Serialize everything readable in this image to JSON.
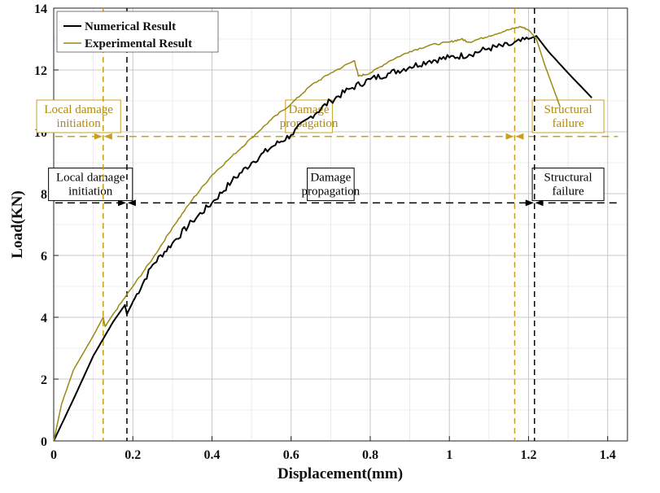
{
  "chart_data": {
    "type": "line",
    "xlabel": "Displacement(mm)",
    "ylabel": "Load(KN)",
    "xlim": [
      0,
      1.45
    ],
    "ylim": [
      0,
      14
    ],
    "xticks": [
      0,
      0.2,
      0.4,
      0.6,
      0.8,
      1,
      1.2,
      1.4
    ],
    "xtick_labels": [
      "0",
      "0.2",
      "0.4",
      "0.6",
      "0.8",
      "1",
      "1.2",
      "1.4"
    ],
    "yticks": [
      0,
      2,
      4,
      6,
      8,
      10,
      12,
      14
    ],
    "ytick_labels": [
      "0",
      "2",
      "4",
      "6",
      "8",
      "10",
      "12",
      "14"
    ],
    "grid": true,
    "legend_position": "top-left",
    "colors": {
      "numerical": "#000000",
      "experimental": "#9a8a12",
      "phase_experimental": "#c8a020"
    },
    "series": [
      {
        "name": "Numerical Result",
        "color": "#000000",
        "x": [
          0,
          0.05,
          0.1,
          0.15,
          0.18,
          0.185,
          0.2,
          0.25,
          0.3,
          0.35,
          0.4,
          0.45,
          0.5,
          0.55,
          0.6,
          0.65,
          0.7,
          0.75,
          0.8,
          0.85,
          0.9,
          0.95,
          1.0,
          1.05,
          1.1,
          1.15,
          1.2,
          1.22,
          1.25,
          1.3,
          1.36
        ],
        "y": [
          0,
          1.35,
          2.75,
          3.85,
          4.4,
          4.1,
          4.5,
          5.7,
          6.4,
          7.1,
          7.7,
          8.4,
          9.0,
          9.5,
          9.9,
          10.5,
          11.0,
          11.4,
          11.7,
          11.9,
          12.1,
          12.3,
          12.4,
          12.5,
          12.7,
          12.8,
          13.0,
          13.1,
          12.6,
          11.9,
          11.1
        ]
      },
      {
        "name": "Experimental Result",
        "color": "#9a8a12",
        "x": [
          0,
          0.02,
          0.05,
          0.1,
          0.125,
          0.13,
          0.15,
          0.2,
          0.25,
          0.3,
          0.35,
          0.4,
          0.45,
          0.5,
          0.55,
          0.6,
          0.65,
          0.7,
          0.76,
          0.77,
          0.8,
          0.85,
          0.9,
          0.95,
          1.0,
          1.03,
          1.05,
          1.1,
          1.15,
          1.18,
          1.2,
          1.22,
          1.24,
          1.26,
          1.28
        ],
        "y": [
          0,
          1.2,
          2.3,
          3.4,
          4.0,
          3.7,
          4.1,
          5.0,
          5.9,
          6.9,
          7.8,
          8.6,
          9.2,
          9.8,
          10.4,
          10.9,
          11.5,
          11.9,
          12.3,
          11.8,
          11.9,
          12.3,
          12.6,
          12.8,
          12.9,
          13.0,
          12.9,
          13.1,
          13.3,
          13.4,
          13.3,
          13.0,
          12.2,
          11.5,
          10.8
        ]
      }
    ],
    "vertical_markers": [
      {
        "x": 0.125,
        "color": "#c8a020"
      },
      {
        "x": 0.185,
        "color": "#000000"
      },
      {
        "x": 1.165,
        "color": "#c8a020"
      },
      {
        "x": 1.215,
        "color": "#000000"
      }
    ],
    "phase_bands": [
      {
        "set": "experimental",
        "color": "#c8a020",
        "y": 9.85,
        "x_start": 0,
        "x_end": 1.43,
        "boundaries": [
          0.125,
          1.165
        ],
        "labels": [
          {
            "text": [
              "Local damage",
              "initiation"
            ],
            "x": 0.063,
            "y": 10.5
          },
          {
            "text": [
              "Damage",
              "propagation"
            ],
            "x": 0.645,
            "y": 10.5
          },
          {
            "text": [
              "Structural",
              "failure"
            ],
            "x": 1.3,
            "y": 10.5
          }
        ]
      },
      {
        "set": "numerical",
        "color": "#000000",
        "y": 7.7,
        "x_start": 0,
        "x_end": 1.43,
        "boundaries": [
          0.185,
          1.215
        ],
        "labels": [
          {
            "text": [
              "Local damage",
              "initiation"
            ],
            "x": 0.093,
            "y": 8.3
          },
          {
            "text": [
              "Damage",
              "propagation"
            ],
            "x": 0.7,
            "y": 8.3
          },
          {
            "text": [
              "Structural",
              "failure"
            ],
            "x": 1.3,
            "y": 8.3
          }
        ]
      }
    ]
  }
}
